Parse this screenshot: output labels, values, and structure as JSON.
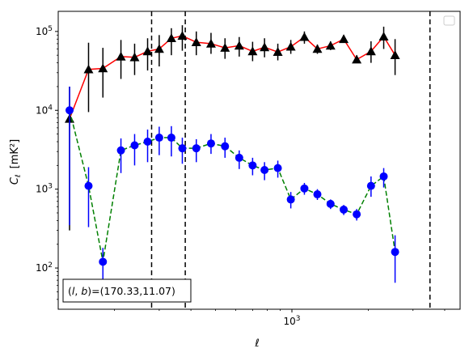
{
  "chart_data": {
    "type": "line",
    "xlabel": "ℓ",
    "ylabel": "C",
    "ylabel_sub": "ℓ",
    "ylabel_unit": "[mK²]",
    "xscale": "log",
    "yscale": "log",
    "xlim": [
      120,
      4600
    ],
    "ylim": [
      30,
      180000
    ],
    "x_ticks": [
      {
        "value": 1000,
        "base": "10",
        "exp": "3"
      }
    ],
    "y_ticks": [
      {
        "value": 100,
        "base": "10",
        "exp": "2"
      },
      {
        "value": 1000,
        "base": "10",
        "exp": "3"
      },
      {
        "value": 10000,
        "base": "10",
        "exp": "4"
      },
      {
        "value": 100000,
        "base": "10",
        "exp": "5"
      }
    ],
    "vlines": [
      280,
      380,
      3500
    ],
    "annotation": "(l, b)=(170.33,11.07)",
    "legend": "empty box, top-right",
    "series": [
      {
        "color": "#ff0000",
        "marker": "triangle",
        "marker_color": "#000000",
        "error_color": "#000000",
        "linestyle": "solid",
        "points": [
          [
            133,
            7800,
            300,
            20000
          ],
          [
            158,
            33000,
            9500,
            72000
          ],
          [
            180,
            34000,
            14500,
            62000
          ],
          [
            212,
            48000,
            25000,
            78000
          ],
          [
            240,
            47000,
            28000,
            70000
          ],
          [
            270,
            56000,
            32000,
            82000
          ],
          [
            300,
            60000,
            36000,
            90000
          ],
          [
            335,
            82000,
            50000,
            110000
          ],
          [
            370,
            88000,
            57000,
            120000
          ],
          [
            420,
            73000,
            50000,
            100000
          ],
          [
            480,
            70000,
            52000,
            96000
          ],
          [
            545,
            62000,
            45000,
            82000
          ],
          [
            620,
            66000,
            48000,
            85000
          ],
          [
            700,
            56000,
            42000,
            74000
          ],
          [
            780,
            63000,
            47000,
            82000
          ],
          [
            880,
            55000,
            43000,
            70000
          ],
          [
            990,
            64000,
            52000,
            78000
          ],
          [
            1120,
            85000,
            70000,
            100000
          ],
          [
            1260,
            60000,
            52000,
            68000
          ],
          [
            1420,
            66000,
            58000,
            75000
          ],
          [
            1600,
            80000,
            72000,
            90000
          ],
          [
            1800,
            44000,
            40000,
            50000
          ],
          [
            2050,
            56000,
            40000,
            75000
          ],
          [
            2300,
            86000,
            60000,
            115000
          ],
          [
            2550,
            50000,
            28000,
            80000
          ]
        ]
      },
      {
        "color": "#008000",
        "marker": "circle",
        "marker_color": "#0000ff",
        "error_color": "#0000ff",
        "linestyle": "dashed",
        "points": [
          [
            133,
            10000,
            350,
            20000
          ],
          [
            158,
            1100,
            330,
            1900
          ],
          [
            180,
            120,
            65,
            180
          ],
          [
            212,
            3100,
            1600,
            4400
          ],
          [
            240,
            3600,
            2000,
            5000
          ],
          [
            270,
            4000,
            2200,
            5700
          ],
          [
            300,
            4500,
            2700,
            6200
          ],
          [
            335,
            4500,
            2600,
            6300
          ],
          [
            370,
            3300,
            2100,
            4500
          ],
          [
            420,
            3300,
            2200,
            4300
          ],
          [
            480,
            3800,
            2800,
            5000
          ],
          [
            545,
            3500,
            2500,
            4500
          ],
          [
            620,
            2500,
            1800,
            3100
          ],
          [
            700,
            2000,
            1500,
            2500
          ],
          [
            780,
            1750,
            1300,
            2200
          ],
          [
            880,
            1850,
            1400,
            2300
          ],
          [
            990,
            740,
            570,
            920
          ],
          [
            1120,
            1020,
            850,
            1200
          ],
          [
            1260,
            860,
            730,
            1000
          ],
          [
            1420,
            650,
            560,
            740
          ],
          [
            1600,
            550,
            470,
            630
          ],
          [
            1800,
            480,
            400,
            560
          ],
          [
            2050,
            1100,
            800,
            1450
          ],
          [
            2300,
            1450,
            1050,
            1850
          ],
          [
            2550,
            160,
            65,
            260
          ]
        ]
      }
    ]
  }
}
